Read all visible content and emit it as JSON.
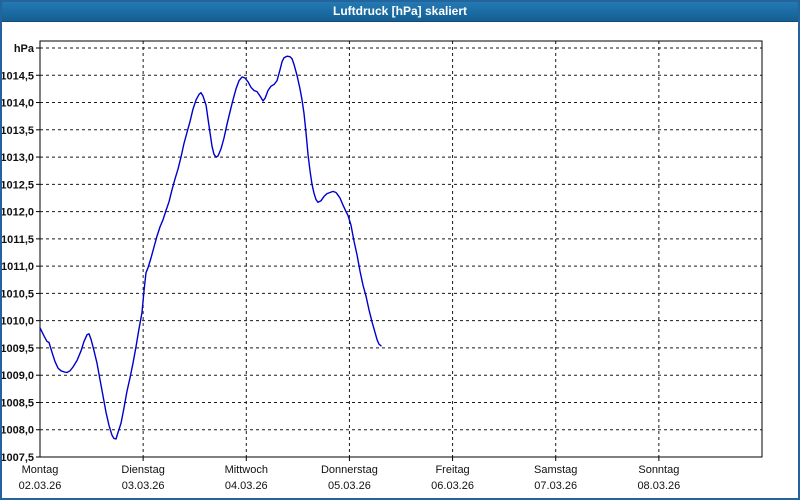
{
  "window": {
    "title": "Luftdruck [hPa] skaliert"
  },
  "colors": {
    "window_border": "#24649c",
    "titlebar_bg": "#1a6ba2",
    "title_text": "#ffffff",
    "plot_frame": "#000000",
    "gridline": "#1a1a1a",
    "line_color": "#0000cc",
    "label_text": "#101010",
    "plot_bg": "#ffffff"
  },
  "chart_data": {
    "type": "line",
    "title": "Luftdruck [hPa] skaliert",
    "ylabel": "hPa",
    "ylim": [
      1007.5,
      1015.0
    ],
    "y_tick_step": 0.5,
    "grid": "dashed",
    "legend": "none",
    "y_ticks": [
      [
        "hPa",
        1015.0
      ],
      [
        "1014,5",
        1014.5
      ],
      [
        "1014,0",
        1014.0
      ],
      [
        "1013,5",
        1013.5
      ],
      [
        "1013,0",
        1013.0
      ],
      [
        "1012,5",
        1012.5
      ],
      [
        "1012,0",
        1012.0
      ],
      [
        "1011,5",
        1011.5
      ],
      [
        "1011,0",
        1011.0
      ],
      [
        "1010,5",
        1010.5
      ],
      [
        "1010,0",
        1010.0
      ],
      [
        "1009,5",
        1009.5
      ],
      [
        "1009,0",
        1009.0
      ],
      [
        "1008,5",
        1008.5
      ],
      [
        "1008,0",
        1008.0
      ],
      [
        "1007,5",
        1007.5
      ]
    ],
    "x_days": [
      {
        "name": "Montag",
        "date": "02.03.26"
      },
      {
        "name": "Dienstag",
        "date": "03.03.26"
      },
      {
        "name": "Mittwoch",
        "date": "04.03.26"
      },
      {
        "name": "Donnerstag",
        "date": "05.03.26"
      },
      {
        "name": "Freitag",
        "date": "06.03.26"
      },
      {
        "name": "Samstag",
        "date": "07.03.26"
      },
      {
        "name": "Sonntag",
        "date": "08.03.26"
      }
    ],
    "series": [
      {
        "name": "Luftdruck",
        "x_unit": "days_since_monday_midnight",
        "points": [
          [
            0.0,
            1009.87
          ],
          [
            0.039,
            1009.72
          ],
          [
            0.068,
            1009.62
          ],
          [
            0.087,
            1009.6
          ],
          [
            0.116,
            1009.42
          ],
          [
            0.145,
            1009.25
          ],
          [
            0.175,
            1009.13
          ],
          [
            0.204,
            1009.08
          ],
          [
            0.233,
            1009.06
          ],
          [
            0.262,
            1009.05
          ],
          [
            0.291,
            1009.08
          ],
          [
            0.32,
            1009.15
          ],
          [
            0.359,
            1009.27
          ],
          [
            0.398,
            1009.45
          ],
          [
            0.427,
            1009.62
          ],
          [
            0.456,
            1009.74
          ],
          [
            0.475,
            1009.76
          ],
          [
            0.494,
            1009.66
          ],
          [
            0.524,
            1009.45
          ],
          [
            0.553,
            1009.22
          ],
          [
            0.582,
            1008.92
          ],
          [
            0.611,
            1008.62
          ],
          [
            0.64,
            1008.32
          ],
          [
            0.669,
            1008.08
          ],
          [
            0.698,
            1007.9
          ],
          [
            0.717,
            1007.84
          ],
          [
            0.737,
            1007.83
          ],
          [
            0.756,
            1007.95
          ],
          [
            0.785,
            1008.12
          ],
          [
            0.814,
            1008.4
          ],
          [
            0.843,
            1008.7
          ],
          [
            0.873,
            1008.95
          ],
          [
            0.902,
            1009.22
          ],
          [
            0.931,
            1009.52
          ],
          [
            0.96,
            1009.85
          ],
          [
            0.989,
            1010.15
          ],
          [
            1.008,
            1010.55
          ],
          [
            1.028,
            1010.88
          ],
          [
            1.047,
            1010.97
          ],
          [
            1.076,
            1011.15
          ],
          [
            1.105,
            1011.35
          ],
          [
            1.134,
            1011.55
          ],
          [
            1.163,
            1011.72
          ],
          [
            1.193,
            1011.85
          ],
          [
            1.222,
            1012.02
          ],
          [
            1.251,
            1012.18
          ],
          [
            1.28,
            1012.4
          ],
          [
            1.309,
            1012.6
          ],
          [
            1.338,
            1012.78
          ],
          [
            1.367,
            1013.0
          ],
          [
            1.396,
            1013.25
          ],
          [
            1.425,
            1013.45
          ],
          [
            1.454,
            1013.65
          ],
          [
            1.483,
            1013.88
          ],
          [
            1.513,
            1014.05
          ],
          [
            1.542,
            1014.15
          ],
          [
            1.561,
            1014.18
          ],
          [
            1.58,
            1014.12
          ],
          [
            1.61,
            1013.95
          ],
          [
            1.629,
            1013.7
          ],
          [
            1.648,
            1013.45
          ],
          [
            1.668,
            1013.2
          ],
          [
            1.687,
            1013.05
          ],
          [
            1.707,
            1013.0
          ],
          [
            1.726,
            1013.02
          ],
          [
            1.755,
            1013.15
          ],
          [
            1.784,
            1013.35
          ],
          [
            1.813,
            1013.6
          ],
          [
            1.842,
            1013.83
          ],
          [
            1.871,
            1014.05
          ],
          [
            1.9,
            1014.25
          ],
          [
            1.929,
            1014.4
          ],
          [
            1.959,
            1014.47
          ],
          [
            1.988,
            1014.45
          ],
          [
            2.017,
            1014.38
          ],
          [
            2.046,
            1014.28
          ],
          [
            2.075,
            1014.22
          ],
          [
            2.104,
            1014.2
          ],
          [
            2.133,
            1014.12
          ],
          [
            2.162,
            1014.03
          ],
          [
            2.182,
            1014.08
          ],
          [
            2.211,
            1014.22
          ],
          [
            2.24,
            1014.3
          ],
          [
            2.269,
            1014.33
          ],
          [
            2.298,
            1014.4
          ],
          [
            2.327,
            1014.6
          ],
          [
            2.347,
            1014.75
          ],
          [
            2.366,
            1014.82
          ],
          [
            2.395,
            1014.85
          ],
          [
            2.424,
            1014.84
          ],
          [
            2.444,
            1014.8
          ],
          [
            2.463,
            1014.7
          ],
          [
            2.492,
            1014.5
          ],
          [
            2.521,
            1014.25
          ],
          [
            2.54,
            1014.05
          ],
          [
            2.56,
            1013.8
          ],
          [
            2.579,
            1013.45
          ],
          [
            2.598,
            1013.05
          ],
          [
            2.618,
            1012.75
          ],
          [
            2.637,
            1012.5
          ],
          [
            2.657,
            1012.33
          ],
          [
            2.676,
            1012.22
          ],
          [
            2.695,
            1012.17
          ],
          [
            2.724,
            1012.2
          ],
          [
            2.754,
            1012.28
          ],
          [
            2.783,
            1012.33
          ],
          [
            2.812,
            1012.35
          ],
          [
            2.841,
            1012.37
          ],
          [
            2.87,
            1012.35
          ],
          [
            2.889,
            1012.3
          ],
          [
            2.909,
            1012.25
          ],
          [
            2.938,
            1012.12
          ],
          [
            2.967,
            1012.0
          ],
          [
            2.986,
            1011.93
          ],
          [
            3.015,
            1011.75
          ],
          [
            3.045,
            1011.45
          ],
          [
            3.074,
            1011.2
          ],
          [
            3.103,
            1010.9
          ],
          [
            3.132,
            1010.65
          ],
          [
            3.161,
            1010.45
          ],
          [
            3.19,
            1010.2
          ],
          [
            3.219,
            1009.98
          ],
          [
            3.249,
            1009.78
          ],
          [
            3.268,
            1009.65
          ],
          [
            3.287,
            1009.57
          ],
          [
            3.306,
            1009.54
          ]
        ]
      }
    ]
  }
}
